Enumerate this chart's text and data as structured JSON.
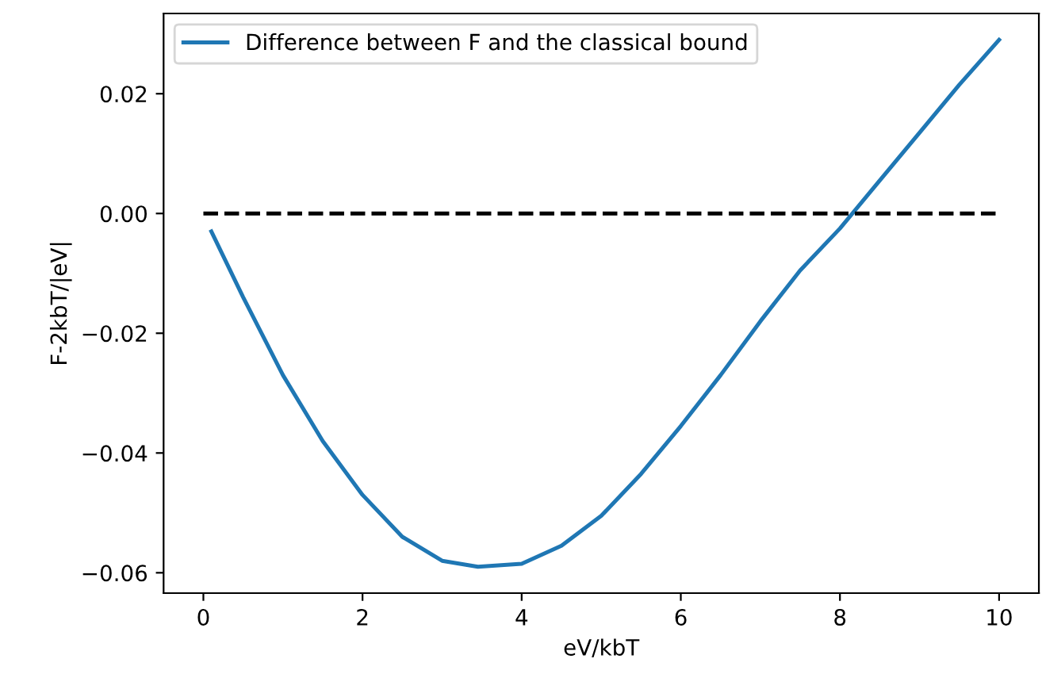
{
  "chart_data": {
    "type": "line",
    "xlabel": "eV/kbT",
    "ylabel": "F-2kbT/|eV|",
    "xlim": [
      -0.5,
      10.5
    ],
    "xticks": [
      0,
      2,
      4,
      6,
      8,
      10
    ],
    "ylim": [
      -0.0634,
      0.0334
    ],
    "yticks": [
      {
        "value": -0.06,
        "label": "−0.06"
      },
      {
        "value": -0.04,
        "label": "−0.04"
      },
      {
        "value": -0.02,
        "label": "−0.02"
      },
      {
        "value": 0,
        "label": "0.00"
      },
      {
        "value": 0.02,
        "label": "0.02"
      }
    ],
    "grid": false,
    "legend": "top left",
    "marker": "none",
    "series": [
      {
        "name": "Difference between F and the classical bound",
        "color": "#1f77b4",
        "line_style": "solid",
        "x": [
          0.1,
          0.5,
          1.0,
          1.5,
          2.0,
          2.5,
          3.0,
          3.45,
          4.0,
          4.5,
          5.0,
          5.5,
          6.0,
          6.5,
          7.0,
          7.5,
          8.0,
          8.5,
          9.0,
          9.5,
          10.0
        ],
        "values": [
          -0.003,
          -0.014,
          -0.027,
          -0.038,
          -0.047,
          -0.054,
          -0.058,
          -0.059,
          -0.0585,
          -0.0555,
          -0.0505,
          -0.0435,
          -0.0355,
          -0.027,
          -0.018,
          -0.0095,
          -0.0025,
          0.0055,
          0.0135,
          0.0215,
          0.029
        ]
      },
      {
        "color": "#000000",
        "line_style": "dashed",
        "x": [
          0,
          10
        ],
        "values": [
          0,
          0
        ]
      }
    ]
  }
}
